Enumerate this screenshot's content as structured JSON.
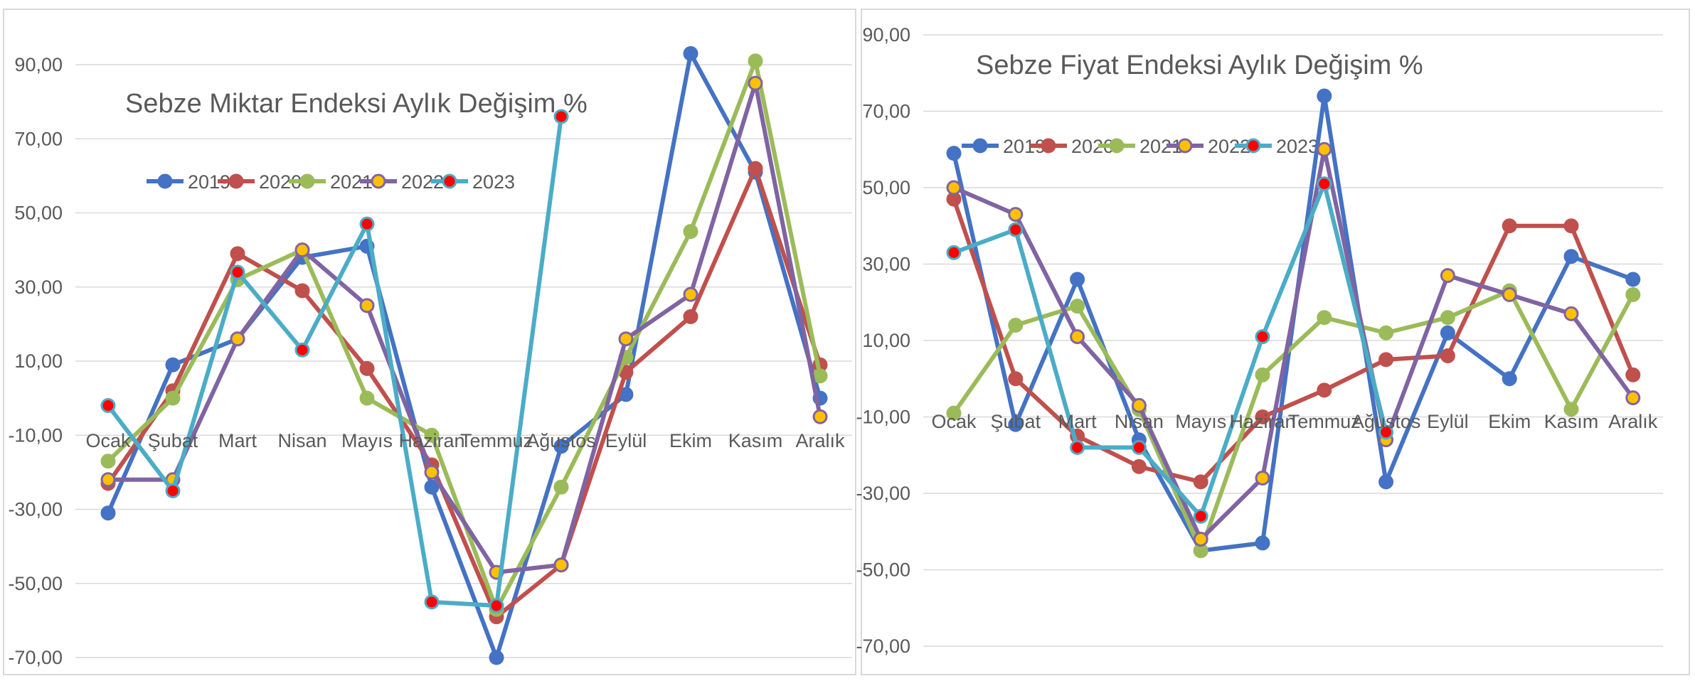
{
  "chart_data": [
    {
      "type": "line",
      "title": "Sebze Miktar Endeksi Aylık Değişim %",
      "categories": [
        "Ocak",
        "Şubat",
        "Mart",
        "Nisan",
        "Mayıs",
        "Haziran",
        "Temmuz",
        "Ağustos",
        "Eylül",
        "Ekim",
        "Kasım",
        "Aralık"
      ],
      "yticks": [
        "90,00",
        "70,00",
        "50,00",
        "30,00",
        "10,00",
        "-10,00",
        "-30,00",
        "-50,00",
        "-70,00"
      ],
      "ylim": [
        -70,
        90
      ],
      "grid": true,
      "legend_position": "top-left",
      "series": [
        {
          "name": "2019",
          "color": "#4472c4",
          "marker_fill": "#4472c4",
          "values": [
            -31,
            9,
            16,
            38,
            41,
            -24,
            -70,
            -13,
            1,
            93,
            61,
            0
          ]
        },
        {
          "name": "2020",
          "color": "#c0504d",
          "marker_fill": "#c0504d",
          "values": [
            -23,
            2,
            39,
            29,
            8,
            -18,
            -59,
            -45,
            7,
            22,
            62,
            9
          ]
        },
        {
          "name": "2021",
          "color": "#9bbb59",
          "marker_fill": "#9bbb59",
          "values": [
            -17,
            0,
            32,
            40,
            0,
            -10,
            -57,
            -24,
            11,
            45,
            91,
            6
          ]
        },
        {
          "name": "2022",
          "color": "#8064a2",
          "marker_fill": "#ffc000",
          "values": [
            -22,
            -22,
            16,
            40,
            25,
            -20,
            -47,
            -45,
            16,
            28,
            85,
            -5
          ]
        },
        {
          "name": "2023",
          "color": "#4bacc6",
          "marker_fill": "#ff0000",
          "values": [
            -2,
            -25,
            34,
            13,
            47,
            -55,
            -56,
            76,
            null,
            null,
            null,
            null
          ]
        }
      ]
    },
    {
      "type": "line",
      "title": "Sebze Fiyat Endeksi Aylık Değişim %",
      "categories": [
        "Ocak",
        "Şubat",
        "Mart",
        "Nisan",
        "Mayıs",
        "Haziran",
        "Temmuz",
        "Ağustos",
        "Eylül",
        "Ekim",
        "Kasım",
        "Aralık"
      ],
      "yticks": [
        "90,00",
        "70,00",
        "50,00",
        "30,00",
        "10,00",
        "-10,00",
        "-30,00",
        "-50,00",
        "-70,00"
      ],
      "ylim": [
        -70,
        90
      ],
      "grid": true,
      "legend_position": "top-left",
      "series": [
        {
          "name": "2019",
          "color": "#4472c4",
          "marker_fill": "#4472c4",
          "values": [
            59,
            -12,
            26,
            -16,
            -45,
            -43,
            74,
            -27,
            12,
            0,
            32,
            26
          ]
        },
        {
          "name": "2020",
          "color": "#c0504d",
          "marker_fill": "#c0504d",
          "values": [
            47,
            0,
            -15,
            -23,
            -27,
            -10,
            -3,
            5,
            6,
            40,
            40,
            1
          ]
        },
        {
          "name": "2021",
          "color": "#9bbb59",
          "marker_fill": "#9bbb59",
          "values": [
            -9,
            14,
            19,
            -8,
            -45,
            1,
            16,
            12,
            16,
            23,
            -8,
            22
          ]
        },
        {
          "name": "2022",
          "color": "#8064a2",
          "marker_fill": "#ffc000",
          "values": [
            50,
            43,
            11,
            -7,
            -42,
            -26,
            60,
            -16,
            27,
            22,
            17,
            -5
          ]
        },
        {
          "name": "2023",
          "color": "#4bacc6",
          "marker_fill": "#ff0000",
          "values": [
            33,
            39,
            -18,
            -18,
            -36,
            11,
            51,
            -14,
            null,
            null,
            null,
            null
          ]
        }
      ]
    }
  ]
}
